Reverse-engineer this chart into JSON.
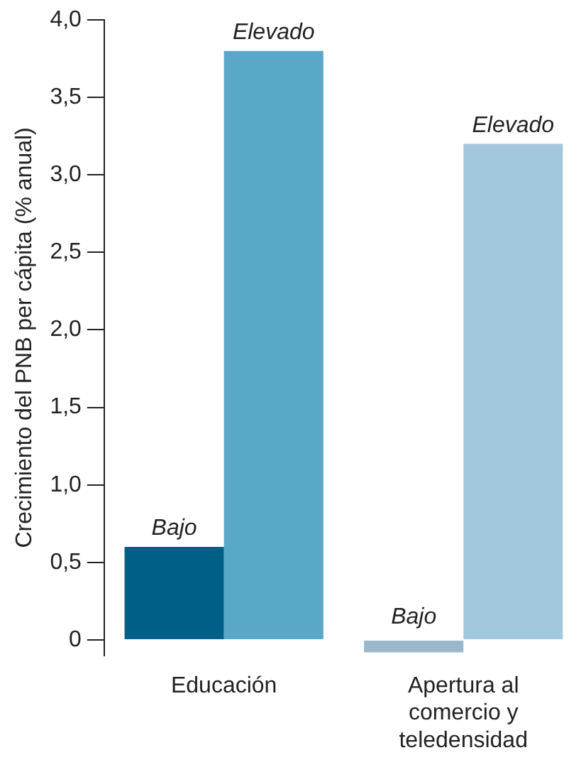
{
  "chart_data": {
    "type": "bar",
    "ylabel": "Crecimiento del PNB per cápita (% anual)",
    "categories": [
      "Educación",
      "Apertura al comercio y teledensidad"
    ],
    "series": [
      {
        "name": "Bajo",
        "colors": [
          "#005f87",
          "#9ab8cb"
        ],
        "values": [
          0.6,
          -0.08
        ]
      },
      {
        "name": "Elevado",
        "colors": [
          "#5aa8c8",
          "#a3c7db"
        ],
        "values": [
          3.8,
          3.2
        ]
      }
    ],
    "ylim": [
      -0.1,
      4.0
    ],
    "yticks": [
      0,
      {
        "value": 0.5,
        "label": "0,5"
      },
      {
        "value": 1,
        "label": "1,0"
      },
      {
        "value": 1.5,
        "label": "1,5"
      },
      {
        "value": 2,
        "label": "2,0"
      },
      {
        "value": 2.5,
        "label": "2,5"
      },
      {
        "value": 3,
        "label": "3,0"
      },
      {
        "value": 3.5,
        "label": "3,5"
      },
      {
        "value": 4,
        "label": "4,0"
      }
    ],
    "grid": false,
    "legend": false
  }
}
